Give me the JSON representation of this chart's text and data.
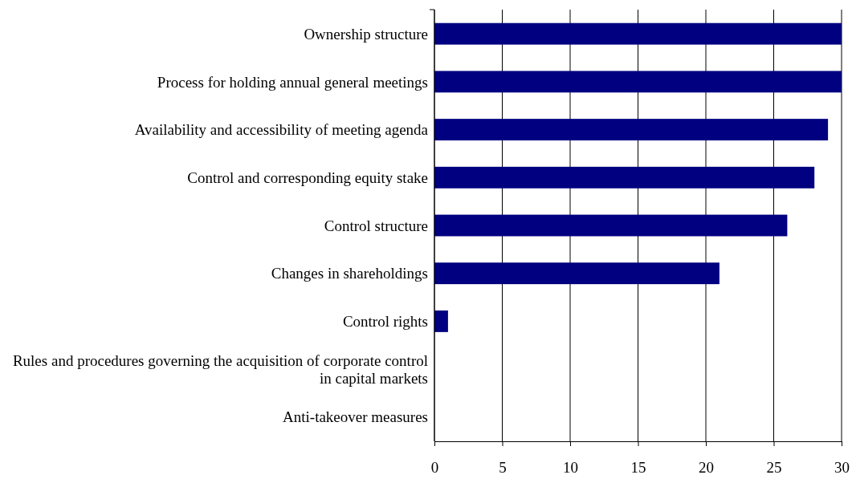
{
  "chart_data": {
    "type": "bar",
    "orientation": "horizontal",
    "categories": [
      "Ownership structure",
      "Process for holding annual general meetings",
      "Availability and accessibility of meeting agenda",
      "Control and corresponding equity stake",
      "Control structure",
      "Changes in shareholdings",
      "Control rights",
      "Rules and procedures governing the acquisition of corporate control in capital markets",
      "Anti-takeover measures"
    ],
    "values": [
      30,
      30,
      29,
      28,
      26,
      21,
      1,
      0,
      0
    ],
    "color": "#000080",
    "xlim": [
      0,
      30
    ],
    "xticks": [
      0,
      5,
      10,
      15,
      20,
      25,
      30
    ],
    "grid": "x"
  }
}
